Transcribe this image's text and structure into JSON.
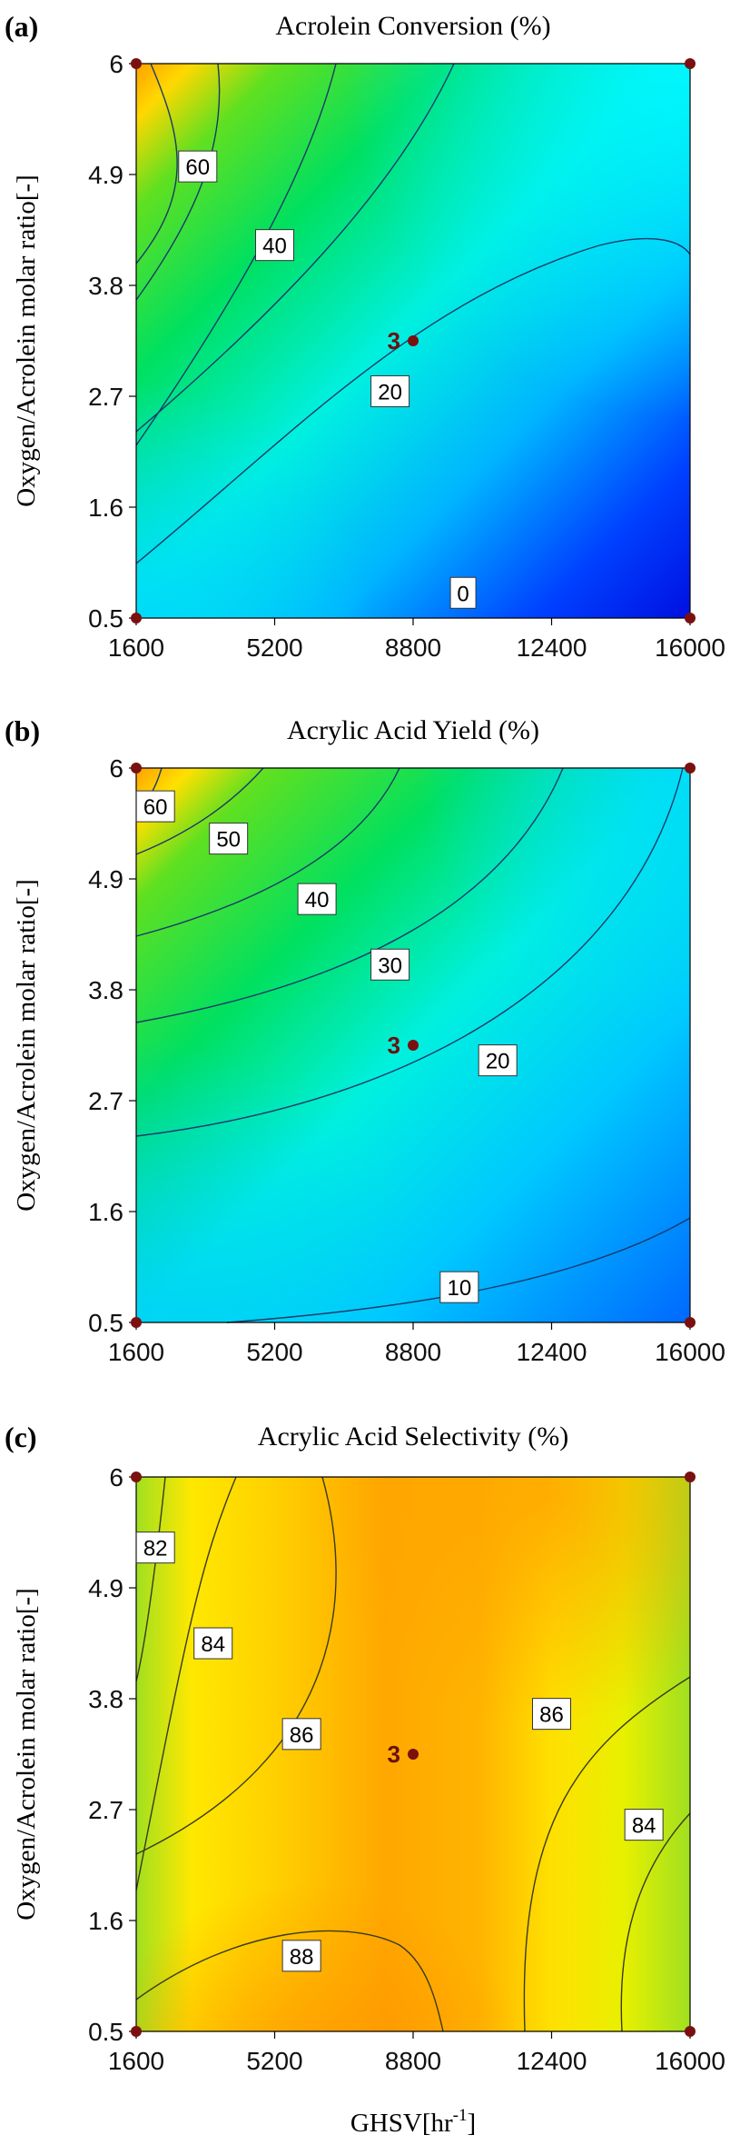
{
  "figure": {
    "xlabel": "GHSV[hr",
    "xlabel_sup": "-1",
    "xlabel_tail": "]"
  },
  "chart_data": [
    {
      "type": "contour",
      "panel_label": "(a)",
      "title": "Acrolein Conversion (%)",
      "ylabel": "Oxygen/Acrolein molar ratio[-]",
      "xlabel": "",
      "xlim": [
        1600,
        16000
      ],
      "ylim": [
        0.5,
        6
      ],
      "x_ticks": [
        "1600",
        "5200",
        "8800",
        "12400",
        "16000"
      ],
      "y_ticks": [
        "0.5",
        "1.6",
        "2.7",
        "3.8",
        "4.9",
        "6"
      ],
      "colors": {
        "min": "#0010e0",
        "low": "#00b4ff",
        "mid_low": "#00f0e0",
        "mid": "#00e060",
        "mid_high": "#60e020",
        "high": "#ffa000"
      },
      "contour_levels": [
        {
          "label": "60",
          "label_at": [
            3200,
            4.98
          ]
        },
        {
          "label": "40",
          "label_at": [
            5200,
            4.2
          ]
        },
        {
          "label": "20",
          "label_at": [
            8200,
            2.75
          ]
        },
        {
          "label": "0",
          "label_at": [
            10100,
            0.75
          ]
        }
      ],
      "design_points": [
        [
          1600,
          0.5
        ],
        [
          1600,
          6
        ],
        [
          16000,
          0.5
        ],
        [
          16000,
          6
        ]
      ],
      "center_point": {
        "x": 8800,
        "y": 3.25,
        "label": "3"
      }
    },
    {
      "type": "contour",
      "panel_label": "(b)",
      "title": "Acrylic Acid Yield (%)",
      "ylabel": "Oxygen/Acrolein molar ratio[-]",
      "xlabel": "",
      "xlim": [
        1600,
        16000
      ],
      "ylim": [
        0.5,
        6
      ],
      "x_ticks": [
        "1600",
        "5200",
        "8800",
        "12400",
        "16000"
      ],
      "y_ticks": [
        "0.5",
        "1.6",
        "2.7",
        "3.8",
        "4.9",
        "6"
      ],
      "colors": {
        "min": "#0070ff",
        "low": "#00c8ff",
        "mid_low": "#00f0e0",
        "mid": "#00e060",
        "mid_high": "#60e020",
        "high": "#ffa000"
      },
      "contour_levels": [
        {
          "label": "60",
          "label_at": [
            2100,
            5.62
          ]
        },
        {
          "label": "50",
          "label_at": [
            4000,
            5.3
          ]
        },
        {
          "label": "40",
          "label_at": [
            6300,
            4.7
          ]
        },
        {
          "label": "30",
          "label_at": [
            8200,
            4.05
          ]
        },
        {
          "label": "20",
          "label_at": [
            11000,
            3.1
          ]
        },
        {
          "label": "10",
          "label_at": [
            10000,
            0.85
          ]
        }
      ],
      "design_points": [
        [
          1600,
          0.5
        ],
        [
          1600,
          6
        ],
        [
          16000,
          0.5
        ],
        [
          16000,
          6
        ]
      ],
      "center_point": {
        "x": 8800,
        "y": 3.25,
        "label": "3"
      }
    },
    {
      "type": "contour",
      "panel_label": "(c)",
      "title": "Acrylic Acid Selectivity (%)",
      "ylabel": "Oxygen/Acrolein molar ratio[-]",
      "xlabel": "GHSV[hr-1]",
      "xlim": [
        1600,
        16000
      ],
      "ylim": [
        0.5,
        6
      ],
      "x_ticks": [
        "1600",
        "5200",
        "8800",
        "12400",
        "16000"
      ],
      "y_ticks": [
        "0.5",
        "1.6",
        "2.7",
        "3.8",
        "4.9",
        "6"
      ],
      "colors": {
        "green": "#a0e020",
        "yellow": "#ffe800",
        "orange_light": "#ffc000",
        "orange": "#ffa000",
        "orange_deep": "#ff8c00"
      },
      "contour_levels": [
        {
          "label": "82",
          "label_at": [
            2100,
            5.3
          ]
        },
        {
          "label": "84",
          "label_at": [
            3600,
            4.35
          ]
        },
        {
          "label": "86",
          "label_at": [
            5900,
            3.45
          ]
        },
        {
          "label": "88",
          "label_at": [
            5900,
            1.25
          ]
        },
        {
          "label": "86",
          "label_at": [
            12400,
            3.65
          ]
        },
        {
          "label": "84",
          "label_at": [
            14800,
            2.55
          ]
        }
      ],
      "design_points": [
        [
          1600,
          0.5
        ],
        [
          1600,
          6
        ],
        [
          16000,
          0.5
        ],
        [
          16000,
          6
        ]
      ],
      "center_point": {
        "x": 8800,
        "y": 3.25,
        "label": "3"
      }
    }
  ]
}
